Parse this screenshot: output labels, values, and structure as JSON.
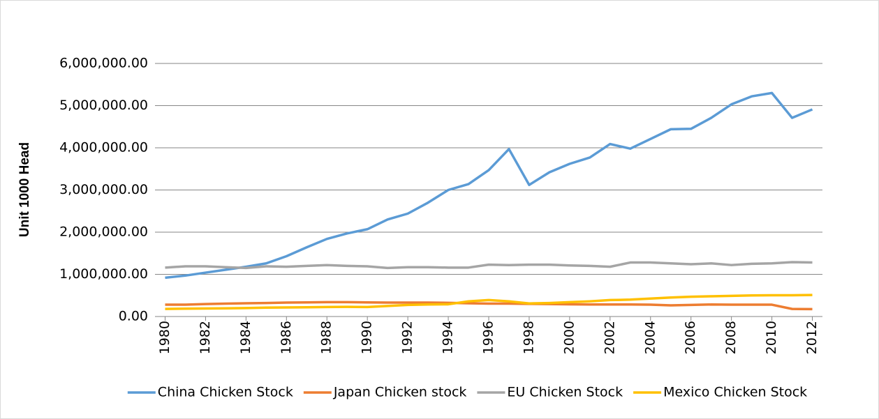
{
  "chart_data": {
    "type": "line",
    "y_label": "Unit 1000 Head",
    "x": [
      1980,
      1981,
      1982,
      1983,
      1984,
      1985,
      1986,
      1987,
      1988,
      1989,
      1990,
      1991,
      1992,
      1993,
      1994,
      1995,
      1996,
      1997,
      1998,
      1999,
      2000,
      2001,
      2002,
      2003,
      2004,
      2005,
      2006,
      2007,
      2008,
      2009,
      2010,
      2011,
      2012
    ],
    "xlim": [
      1979.5,
      2012.5
    ],
    "xticks": [
      1980,
      1982,
      1984,
      1986,
      1988,
      1990,
      1992,
      1994,
      1996,
      1998,
      2000,
      2002,
      2004,
      2006,
      2008,
      2010,
      2012
    ],
    "ylim": [
      0,
      6000000
    ],
    "yticks": [
      {
        "value": 0,
        "label": "0.00"
      },
      {
        "value": 1000000,
        "label": "1,000,000.00"
      },
      {
        "value": 2000000,
        "label": "2,000,000.00"
      },
      {
        "value": 3000000,
        "label": "3,000,000.00"
      },
      {
        "value": 4000000,
        "label": "4,000,000.00"
      },
      {
        "value": 5000000,
        "label": "5,000,000.00"
      },
      {
        "value": 6000000,
        "label": "6,000,000.00"
      }
    ],
    "grid": true,
    "legend": "bottom",
    "series": [
      {
        "name": "China Chicken Stock",
        "color": "#5b9bd5",
        "values": [
          920000,
          970000,
          1040000,
          1110000,
          1180000,
          1260000,
          1430000,
          1640000,
          1840000,
          1970000,
          2070000,
          2300000,
          2440000,
          2700000,
          3000000,
          3140000,
          3470000,
          3970000,
          3120000,
          3420000,
          3620000,
          3770000,
          4090000,
          3980000,
          4210000,
          4440000,
          4450000,
          4710000,
          5030000,
          5220000,
          5300000,
          4710000,
          4910000
        ]
      },
      {
        "name": "Japan Chicken stock",
        "color": "#ed7d31",
        "values": [
          280000,
          280000,
          295000,
          305000,
          315000,
          320000,
          330000,
          335000,
          340000,
          340000,
          335000,
          330000,
          330000,
          330000,
          325000,
          315000,
          305000,
          305000,
          300000,
          295000,
          290000,
          285000,
          285000,
          285000,
          280000,
          265000,
          275000,
          285000,
          280000,
          280000,
          280000,
          180000,
          175000
        ]
      },
      {
        "name": "EU Chicken Stock",
        "color": "#a5a5a5",
        "values": [
          1160000,
          1190000,
          1190000,
          1170000,
          1150000,
          1190000,
          1180000,
          1200000,
          1220000,
          1200000,
          1190000,
          1150000,
          1170000,
          1170000,
          1160000,
          1160000,
          1230000,
          1220000,
          1230000,
          1230000,
          1210000,
          1200000,
          1180000,
          1280000,
          1280000,
          1260000,
          1240000,
          1260000,
          1220000,
          1250000,
          1260000,
          1290000,
          1280000
        ]
      },
      {
        "name": "Mexico Chicken Stock",
        "color": "#ffc000",
        "values": [
          180000,
          185000,
          190000,
          195000,
          200000,
          210000,
          215000,
          220000,
          225000,
          230000,
          225000,
          250000,
          275000,
          285000,
          290000,
          360000,
          390000,
          360000,
          310000,
          320000,
          340000,
          360000,
          390000,
          400000,
          425000,
          450000,
          470000,
          480000,
          490000,
          500000,
          505000,
          505000,
          510000
        ]
      }
    ]
  }
}
